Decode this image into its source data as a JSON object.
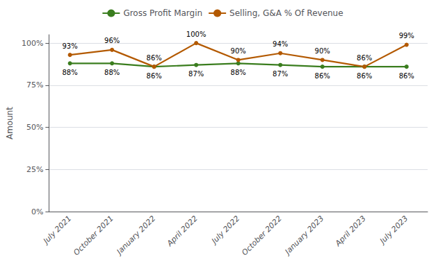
{
  "chart_data": {
    "type": "line",
    "categories": [
      "July 2021",
      "October 2021",
      "January 2022",
      "April 2022",
      "July 2022",
      "October 2022",
      "January 2023",
      "April 2023",
      "July 2023"
    ],
    "series": [
      {
        "name": "Gross Profit Margin",
        "color": "#3a7d1e",
        "marker": "circle",
        "values": [
          88,
          88,
          86,
          87,
          88,
          87,
          86,
          86,
          86
        ],
        "value_labels": [
          "88%",
          "88%",
          "86%",
          "87%",
          "88%",
          "87%",
          "86%",
          "86%",
          "86%"
        ]
      },
      {
        "name": "Selling, G&A % Of Revenue",
        "color": "#b35900",
        "marker": "circle",
        "values": [
          93,
          96,
          86,
          100,
          90,
          94,
          90,
          86,
          99
        ],
        "value_labels": [
          "93%",
          "96%",
          "86%",
          "100%",
          "90%",
          "94%",
          "90%",
          "86%",
          "99%"
        ]
      }
    ],
    "ylabel": "Amount",
    "ylim": [
      0,
      105
    ],
    "yticks": [
      {
        "value": 0,
        "label": "0%"
      },
      {
        "value": 25,
        "label": "25%"
      },
      {
        "value": 50,
        "label": "50%"
      },
      {
        "value": 75,
        "label": "75%"
      },
      {
        "value": 100,
        "label": "100%"
      }
    ],
    "grid": true,
    "legend": "top",
    "data_labels": true
  }
}
